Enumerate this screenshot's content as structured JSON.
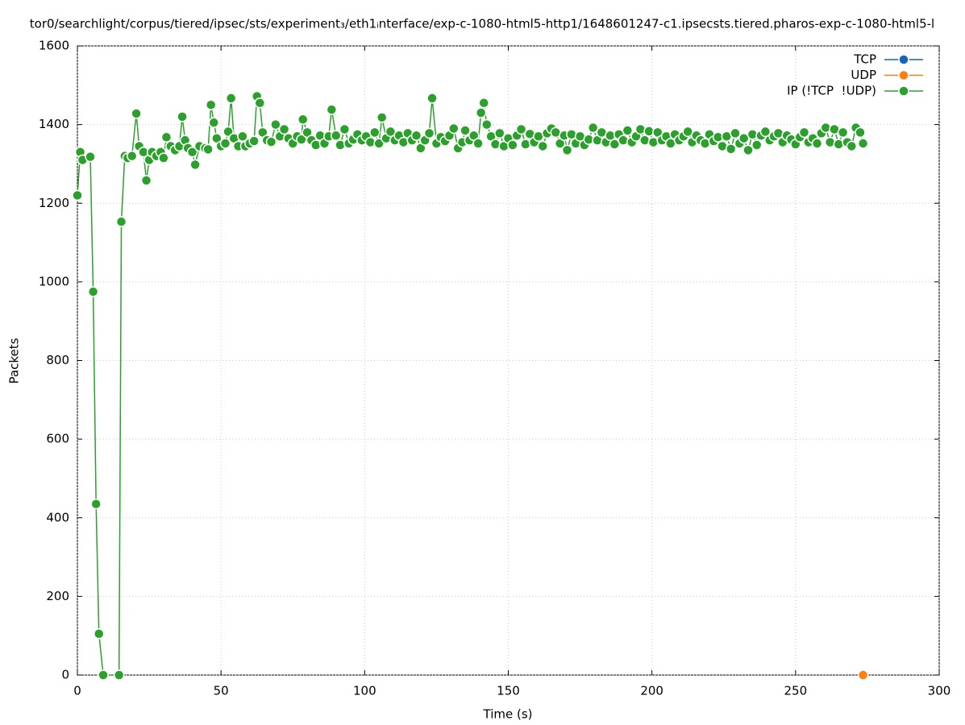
{
  "chart_data": {
    "type": "line",
    "title": "tor0/searchlight/corpus/tiered/ipsec/sts/experiment₃/eth1ᵢnterface/exp-c-1080-html5-http1/1648601247-c1.ipsecsts.tiered.pharos-exp-c-1080-html5-l",
    "x_label": "Time (s)",
    "y_label": "Packets",
    "xlim": [
      0,
      300
    ],
    "xticks": [
      0,
      50,
      100,
      150,
      200,
      250,
      300
    ],
    "ylim": [
      0,
      1600
    ],
    "yticks": [
      0,
      200,
      400,
      600,
      800,
      1000,
      1200,
      1400,
      1600
    ],
    "grid": true,
    "legend": "top-right",
    "series": [
      {
        "name": "TCP",
        "color": "#1565c0",
        "x": [],
        "values": []
      },
      {
        "name": "UDP",
        "color": "#ff7f0e",
        "x": [
          273.5
        ],
        "values": [
          0
        ]
      },
      {
        "name": "IP (!TCP  !UDP)",
        "color": "#2ca02c",
        "x": [
          0,
          1,
          1.8,
          4.5,
          5.5,
          6.5,
          7.5,
          9,
          14.5,
          15.3,
          16.5,
          17.5,
          19,
          20.5,
          21.5,
          23,
          24,
          25,
          26,
          27.5,
          29,
          30,
          31,
          32.5,
          34,
          35.5,
          36.5,
          37.5,
          38.5,
          40,
          41,
          42.5,
          44.5,
          45.5,
          46.5,
          47.5,
          48.5,
          50,
          51.5,
          52.5,
          53.5,
          54.5,
          56,
          57.5,
          58.5,
          60,
          61.5,
          62.5,
          63.5,
          64.5,
          66,
          67.5,
          69,
          70.5,
          72,
          73.5,
          75,
          76.5,
          78,
          78.5,
          80,
          81.5,
          83,
          84.5,
          86,
          87.5,
          88.5,
          90,
          91.5,
          93,
          94.5,
          96,
          97.5,
          99,
          100.5,
          102,
          103.5,
          105,
          106,
          107.5,
          109,
          110.5,
          112,
          113.5,
          115,
          116.5,
          118,
          119.5,
          121,
          122.5,
          123.5,
          125,
          126.5,
          128,
          129.5,
          131,
          132.5,
          134,
          135,
          136.5,
          138,
          139.5,
          140.5,
          141.5,
          142.5,
          144,
          145.5,
          147,
          148.5,
          150,
          151.5,
          153,
          154.5,
          156,
          157.5,
          159,
          160.5,
          162,
          163.5,
          165,
          166.5,
          168,
          169.5,
          170.5,
          172,
          173.5,
          175,
          176.5,
          178,
          179.5,
          181,
          182.5,
          184,
          185.5,
          187,
          188.5,
          190,
          191.5,
          193,
          194.5,
          196,
          197.5,
          199,
          200.5,
          202,
          203.5,
          205,
          206.5,
          208,
          209.5,
          211,
          212.5,
          214,
          215.5,
          217,
          218.5,
          220,
          221.5,
          223,
          224.5,
          226,
          227.5,
          229,
          230.5,
          232,
          233.5,
          235,
          236.5,
          238,
          239.5,
          241,
          242.5,
          244,
          245.5,
          247,
          248.5,
          250,
          251.5,
          253,
          254.5,
          256,
          257.5,
          259,
          260.5,
          262,
          263.5,
          265,
          266.5,
          268,
          269.5,
          271,
          272.5,
          273.5
        ],
        "values": [
          1220,
          1330,
          1310,
          1318,
          975,
          435,
          105,
          0,
          0,
          1153,
          1320,
          1315,
          1320,
          1428,
          1345,
          1330,
          1258,
          1310,
          1330,
          1320,
          1330,
          1315,
          1368,
          1345,
          1335,
          1345,
          1420,
          1360,
          1340,
          1330,
          1298,
          1345,
          1340,
          1337,
          1450,
          1405,
          1365,
          1345,
          1352,
          1382,
          1467,
          1365,
          1345,
          1370,
          1345,
          1352,
          1358,
          1472,
          1455,
          1380,
          1360,
          1356,
          1400,
          1370,
          1388,
          1365,
          1352,
          1370,
          1362,
          1413,
          1380,
          1360,
          1348,
          1372,
          1352,
          1370,
          1438,
          1372,
          1348,
          1388,
          1352,
          1362,
          1375,
          1360,
          1370,
          1355,
          1380,
          1352,
          1418,
          1365,
          1382,
          1360,
          1372,
          1355,
          1378,
          1360,
          1372,
          1340,
          1360,
          1378,
          1467,
          1352,
          1368,
          1358,
          1372,
          1390,
          1340,
          1355,
          1385,
          1360,
          1372,
          1352,
          1430,
          1455,
          1400,
          1370,
          1350,
          1378,
          1345,
          1365,
          1348,
          1372,
          1388,
          1350,
          1376,
          1355,
          1370,
          1345,
          1378,
          1390,
          1380,
          1352,
          1372,
          1335,
          1375,
          1352,
          1370,
          1348,
          1362,
          1392,
          1360,
          1380,
          1355,
          1372,
          1350,
          1375,
          1360,
          1385,
          1355,
          1370,
          1388,
          1360,
          1383,
          1355,
          1380,
          1360,
          1370,
          1352,
          1375,
          1360,
          1370,
          1382,
          1355,
          1372,
          1360,
          1352,
          1375,
          1358,
          1368,
          1345,
          1370,
          1338,
          1378,
          1352,
          1365,
          1335,
          1375,
          1348,
          1372,
          1382,
          1360,
          1370,
          1378,
          1355,
          1372,
          1362,
          1350,
          1368,
          1380,
          1355,
          1365,
          1352,
          1378,
          1392,
          1355,
          1388,
          1350,
          1380,
          1355,
          1345,
          1392,
          1380,
          1352
        ]
      }
    ]
  }
}
